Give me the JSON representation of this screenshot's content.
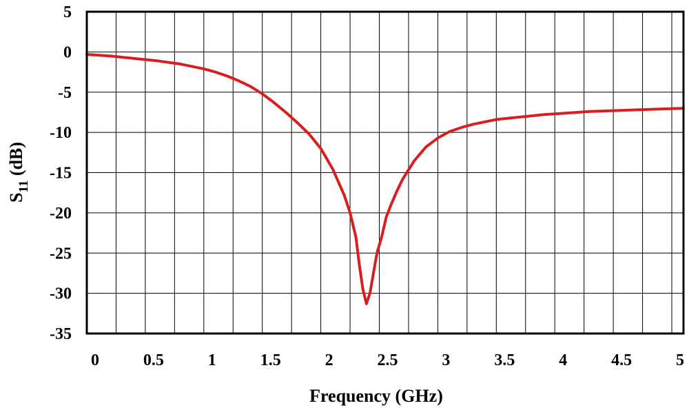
{
  "chart_data": {
    "type": "line",
    "xlabel": "Frequency (GHz)",
    "ylabel": {
      "main": "S",
      "sub": "11",
      "unit": " (dB)"
    },
    "xlim": [
      0,
      5.1
    ],
    "ylim": [
      -35,
      5
    ],
    "x_ticks": [
      "0",
      "0.5",
      "1",
      "1.5",
      "2",
      "2.5",
      "3",
      "3.5",
      "4",
      "4.5",
      "5"
    ],
    "x_tick_values": [
      0,
      0.5,
      1,
      1.5,
      2,
      2.5,
      3,
      3.5,
      4,
      4.5,
      5
    ],
    "y_ticks": [
      "5",
      "0",
      "-5",
      "-10",
      "-15",
      "-20",
      "-25",
      "-30",
      "-35"
    ],
    "y_tick_values": [
      5,
      0,
      -5,
      -10,
      -15,
      -20,
      -25,
      -30,
      -35
    ],
    "grid": true,
    "colors": {
      "line": "#d71f1f",
      "grid": "#000000",
      "frame": "#000000"
    },
    "series": [
      {
        "x": [
          0,
          0.2,
          0.4,
          0.6,
          0.8,
          1.0,
          1.1,
          1.2,
          1.3,
          1.4,
          1.5,
          1.6,
          1.7,
          1.8,
          1.9,
          2.0,
          2.1,
          2.2,
          2.25,
          2.3,
          2.33,
          2.36,
          2.39,
          2.42,
          2.45,
          2.48,
          2.52,
          2.56,
          2.6,
          2.65,
          2.7,
          2.8,
          2.9,
          3.0,
          3.1,
          3.2,
          3.3,
          3.4,
          3.5,
          3.7,
          3.9,
          4.1,
          4.3,
          4.5,
          4.7,
          4.9,
          5.1
        ],
        "y": [
          -0.3,
          -0.5,
          -0.8,
          -1.1,
          -1.5,
          -2.1,
          -2.5,
          -3.0,
          -3.6,
          -4.3,
          -5.2,
          -6.3,
          -7.5,
          -8.8,
          -10.2,
          -12.0,
          -14.5,
          -17.8,
          -20.0,
          -23.0,
          -26.5,
          -29.5,
          -31.3,
          -30.0,
          -27.5,
          -25.0,
          -23.0,
          -20.5,
          -19.0,
          -17.3,
          -15.8,
          -13.5,
          -11.8,
          -10.7,
          -9.9,
          -9.4,
          -9.0,
          -8.7,
          -8.4,
          -8.1,
          -7.8,
          -7.6,
          -7.4,
          -7.3,
          -7.2,
          -7.1,
          -7.0
        ]
      }
    ]
  }
}
